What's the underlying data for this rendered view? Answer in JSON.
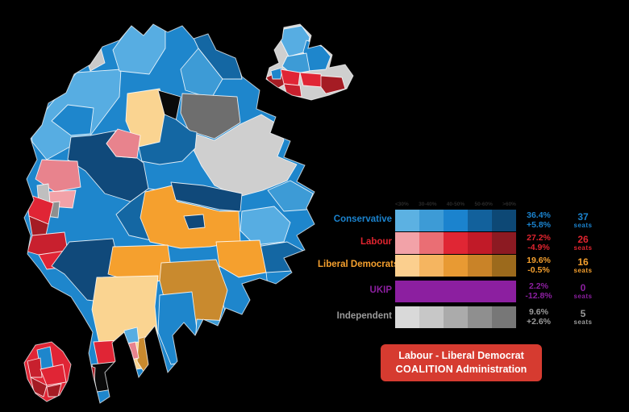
{
  "background_color": "#000000",
  "legend": {
    "scale_labels": [
      "<30%",
      "30-40%",
      "40-50%",
      "50-60%",
      ">60%"
    ],
    "seats_word": "seats",
    "parties": [
      {
        "name": "Conservative",
        "color": "#1B83CE",
        "ramp": [
          "#5CB1E2",
          "#3D9BD6",
          "#1B83CE",
          "#12619C",
          "#0D4875"
        ],
        "share": "36.4%",
        "change": "+5.8%",
        "seats": "37"
      },
      {
        "name": "Labour",
        "color": "#E0242F",
        "ramp": [
          "#F2A2A8",
          "#EA6E74",
          "#E02634",
          "#C11A28",
          "#8C1A22"
        ],
        "share": "27.2%",
        "change": "-4.9%",
        "seats": "26"
      },
      {
        "name": "Liberal Democrats",
        "color": "#F5A02E",
        "ramp": [
          "#FBCF8E",
          "#F5B560",
          "#E89A33",
          "#C98328",
          "#9C6A1C"
        ],
        "share": "19.6%",
        "change": "-0.5%",
        "seats": "16"
      },
      {
        "name": "UKIP",
        "color": "#8C1FA0",
        "ramp": [
          "#8C1FA0",
          "#8C1FA0",
          "#8C1FA0",
          "#8C1FA0",
          "#8C1FA0"
        ],
        "share": "2.2%",
        "change": "-12.8%",
        "seats": "0"
      },
      {
        "name": "Independent",
        "color": "#9A9A9A",
        "ramp": [
          "#D9D9D9",
          "#C7C7C7",
          "#ABABAB",
          "#8F8F8F",
          "#777777"
        ],
        "share": "9.6%",
        "change": "+2.6%",
        "seats": "5"
      }
    ]
  },
  "caption": {
    "line1": "Labour - Liberal Democrat",
    "line2_strong": "COALITION",
    "line2_rest": " Administration",
    "bg_color": "#D63B30",
    "text_color": "#FFFFFF"
  },
  "map": {
    "extra_colors": {
      "black_division": "#0A0A0A",
      "dark_grey_division": "#6E6E6E",
      "light_grey_division": "#CFCFCF",
      "cream_division": "#FAD491",
      "pink_division": "#E8838D",
      "dark_navy_division": "#10497A"
    }
  }
}
